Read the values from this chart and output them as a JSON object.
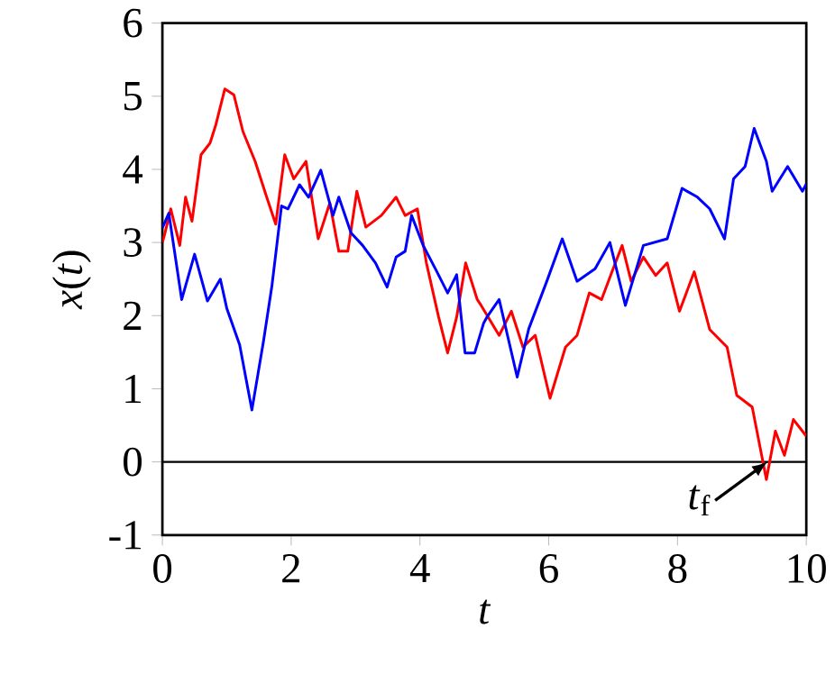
{
  "chart_data": {
    "type": "line",
    "xlabel": "*t*",
    "ylabel": "*x*(*t*)",
    "xlim": [
      0,
      10
    ],
    "ylim": [
      -1,
      6
    ],
    "xticks": [
      0,
      2,
      4,
      6,
      8,
      10
    ],
    "yticks": [
      -1,
      0,
      1,
      2,
      3,
      4,
      5,
      6
    ],
    "grid": false,
    "marker": "none",
    "line_style": "solid",
    "ref_lines": [
      {
        "axis": "y",
        "value": 0,
        "color": "#000000"
      }
    ],
    "annotations": [
      {
        "text": "*t*$_{f}$",
        "x": 9.4,
        "y": 0
      }
    ],
    "series": [
      {
        "color": "#ff0000",
        "x": [
          0,
          0.04,
          0.13,
          0.27,
          0.36,
          0.46,
          0.6,
          0.74,
          0.83,
          0.97,
          1.11,
          1.25,
          1.44,
          1.62,
          1.76,
          1.9,
          2.04,
          2.23,
          2.42,
          2.6,
          2.74,
          2.88,
          3.02,
          3.16,
          3.4,
          3.63,
          3.77,
          3.96,
          4.1,
          4.29,
          4.43,
          4.57,
          4.71,
          4.89,
          4.95,
          5.23,
          5.42,
          5.6,
          5.79,
          6.02,
          6.26,
          6.44,
          6.63,
          6.82,
          7.0,
          7.14,
          7.28,
          7.47,
          7.66,
          7.84,
          8.03,
          8.26,
          8.5,
          8.77,
          8.92,
          9.16,
          9.38,
          9.52,
          9.66,
          9.8,
          9.94,
          10
        ],
        "values": [
          3.0,
          3.13,
          3.46,
          2.96,
          3.62,
          3.29,
          4.2,
          4.36,
          4.61,
          5.1,
          5.02,
          4.52,
          4.11,
          3.62,
          3.25,
          4.2,
          3.87,
          4.11,
          3.05,
          3.54,
          2.88,
          2.88,
          3.7,
          3.21,
          3.37,
          3.62,
          3.37,
          3.46,
          2.72,
          1.98,
          1.49,
          1.98,
          2.72,
          2.22,
          2.14,
          1.73,
          2.06,
          1.57,
          1.73,
          0.87,
          1.57,
          1.73,
          2.31,
          2.22,
          2.64,
          2.96,
          2.47,
          2.8,
          2.55,
          2.72,
          2.06,
          2.6,
          1.81,
          1.57,
          0.91,
          0.75,
          -0.24,
          0.42,
          0.09,
          0.58,
          0.42,
          0.35
        ]
      },
      {
        "color": "#0000ff",
        "x": [
          0,
          0.1,
          0.3,
          0.5,
          0.7,
          0.9,
          1.0,
          1.2,
          1.39,
          1.57,
          1.7,
          1.85,
          1.95,
          2.13,
          2.27,
          2.46,
          2.65,
          2.74,
          2.93,
          3.11,
          3.31,
          3.49,
          3.63,
          3.77,
          3.87,
          4.05,
          4.24,
          4.43,
          4.57,
          4.7,
          4.85,
          4.99,
          5.04,
          5.23,
          5.51,
          5.69,
          5.97,
          6.21,
          6.44,
          6.72,
          6.95,
          7.19,
          7.47,
          7.84,
          8.07,
          8.31,
          8.5,
          8.73,
          8.87,
          9.05,
          9.19,
          9.38,
          9.47,
          9.71,
          9.94,
          10
        ],
        "values": [
          3.2,
          3.4,
          2.22,
          2.84,
          2.2,
          2.5,
          2.1,
          1.6,
          0.71,
          1.65,
          2.4,
          3.5,
          3.46,
          3.79,
          3.62,
          3.99,
          3.37,
          3.62,
          3.13,
          2.96,
          2.72,
          2.39,
          2.8,
          2.88,
          3.37,
          2.96,
          2.64,
          2.31,
          2.56,
          1.49,
          1.49,
          1.9,
          1.98,
          2.22,
          1.16,
          1.82,
          2.47,
          3.05,
          2.47,
          2.64,
          3.0,
          2.14,
          2.96,
          3.05,
          3.74,
          3.62,
          3.46,
          3.05,
          3.87,
          4.04,
          4.56,
          4.11,
          3.7,
          4.04,
          3.7,
          3.8
        ]
      }
    ]
  }
}
